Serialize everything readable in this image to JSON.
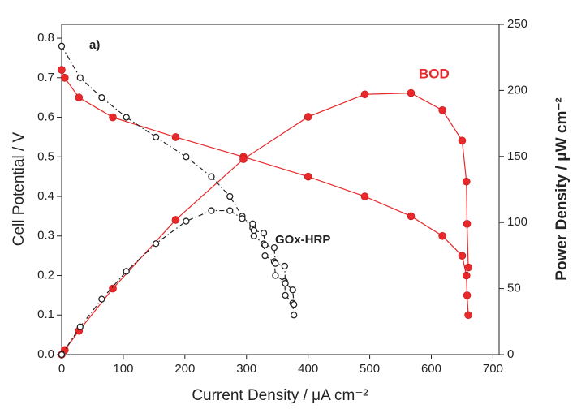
{
  "chart_data": {
    "type": "line",
    "x_label": "Current Density / μA cm⁻²",
    "y_label": "Cell Potential / V",
    "y2_label": "Power Density / μW cm⁻²",
    "annotations": [
      "a)",
      "BOD",
      "GOx-HRP"
    ],
    "xlim": [
      0,
      710
    ],
    "ylim": [
      0,
      0.835
    ],
    "y2lim": [
      0,
      250
    ],
    "xticks": [
      0,
      100,
      200,
      300,
      400,
      500,
      600,
      700
    ],
    "yticks": [
      {
        "value": 0,
        "label": "0.0"
      },
      0.1,
      0.2,
      0.3,
      0.4,
      0.5,
      0.6,
      0.7,
      0.8
    ],
    "y2ticks": [
      0,
      50,
      100,
      150,
      200,
      250
    ],
    "series": [
      {
        "color": "#e8282a",
        "marker": "filled",
        "line_style": "solid",
        "x": [
          0,
          5,
          28,
          83,
          185,
          295,
          400,
          492,
          567,
          618,
          650,
          657,
          658,
          660
        ],
        "values": [
          0.72,
          0.7,
          0.65,
          0.6,
          0.55,
          0.5,
          0.45,
          0.4,
          0.35,
          0.3,
          0.25,
          0.2,
          0.15,
          0.1
        ]
      },
      {
        "color": "#e8282a",
        "marker": "filled",
        "line_style": "solid",
        "axis": "y2",
        "x": [
          0,
          5,
          28,
          83,
          185,
          295,
          400,
          492,
          567,
          618,
          650,
          657,
          658,
          660
        ],
        "values": [
          0,
          3.5,
          18,
          50,
          102,
          148,
          180,
          197,
          198,
          185,
          162,
          131,
          99,
          66
        ]
      },
      {
        "color": "#222222",
        "marker": "open",
        "line_style": "dashdot",
        "x": [
          0,
          30,
          65,
          105,
          153,
          202,
          243,
          273,
          293,
          310,
          312,
          328,
          330,
          345,
          347,
          362,
          363,
          375,
          377
        ],
        "values": [
          0.78,
          0.7,
          0.65,
          0.6,
          0.55,
          0.5,
          0.45,
          0.4,
          0.35,
          0.32,
          0.3,
          0.28,
          0.25,
          0.235,
          0.2,
          0.185,
          0.15,
          0.13,
          0.1
        ]
      },
      {
        "color": "#222222",
        "marker": "open",
        "line_style": "dashdot",
        "axis": "y2",
        "x": [
          0,
          30,
          65,
          105,
          153,
          202,
          243,
          273,
          293,
          310,
          312,
          328,
          330,
          345,
          347,
          362,
          363,
          375,
          377
        ],
        "values": [
          0,
          21,
          42,
          63,
          84,
          101,
          109,
          109,
          103,
          99,
          94,
          92,
          83,
          81,
          69,
          67,
          54,
          49,
          38
        ]
      }
    ]
  }
}
